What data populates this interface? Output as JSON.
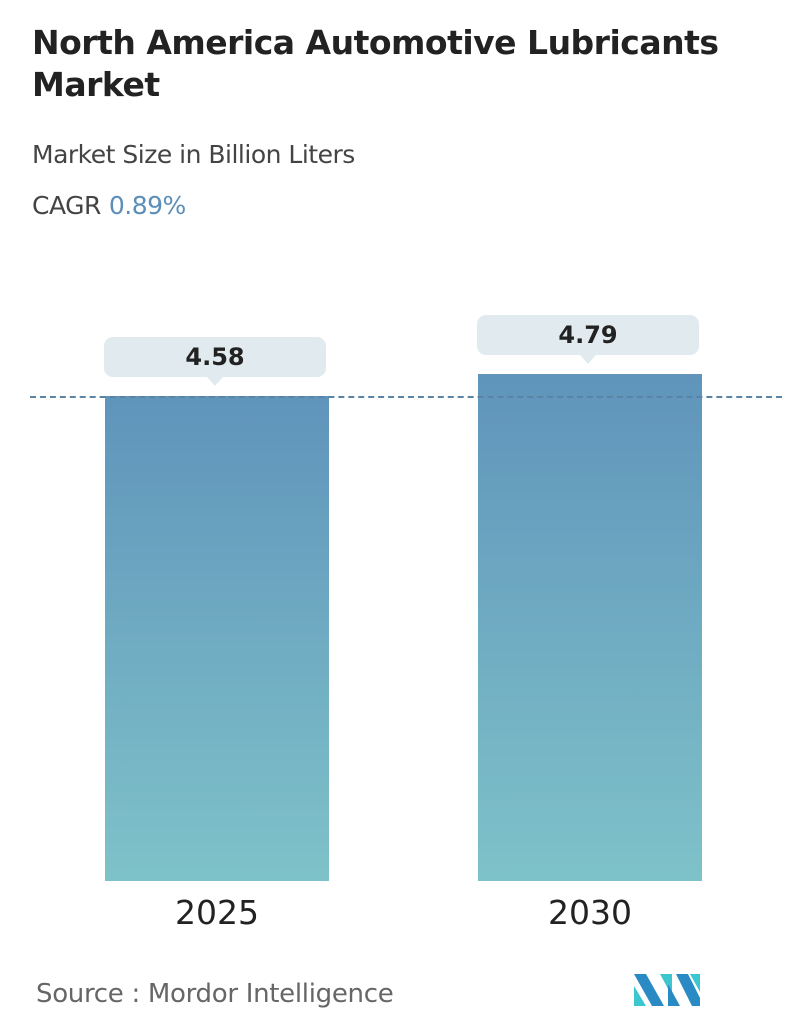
{
  "chart_data": {
    "type": "bar",
    "title": "North America Automotive Lubricants Market",
    "subtitle": "Market Size in Billion Liters",
    "cagr_label": "CAGR",
    "cagr_value": "0.89%",
    "categories": [
      "2025",
      "2030"
    ],
    "values": [
      4.58,
      4.79
    ],
    "value_labels": [
      "4.58",
      "4.79"
    ],
    "xlabel": "",
    "ylabel": "",
    "grid": false,
    "reference_line": "dashed line at first bar value",
    "colors": {
      "bar_top": "#6094bb",
      "bar_bottom": "#7ec2c9",
      "cagr": "#5b8fb9"
    }
  },
  "footer": {
    "source": "Source :  Mordor Intelligence",
    "logo": "Mordor Intelligence"
  }
}
